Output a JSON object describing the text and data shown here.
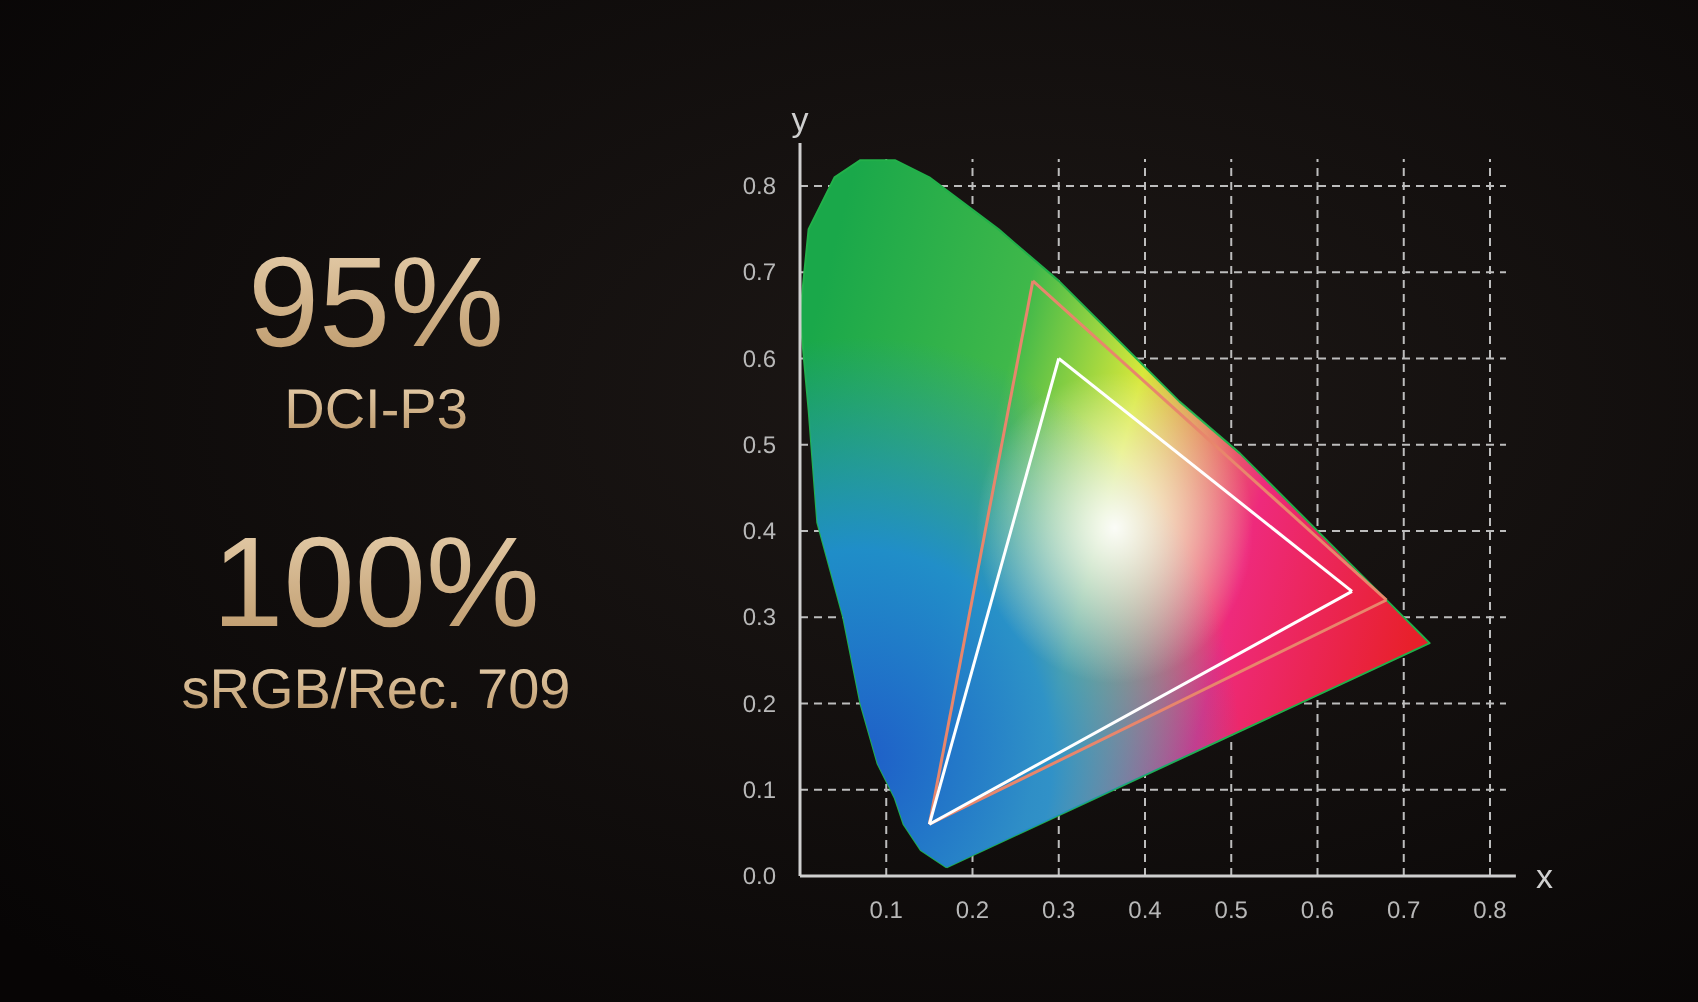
{
  "chart_data": {
    "type": "line",
    "xlabel": "x",
    "ylabel": "y",
    "annotations": [
      "95%",
      "DCI-P3",
      "100%",
      "sRGB/Rec. 709"
    ],
    "xlim": [
      0,
      0.83
    ],
    "ylim": [
      0,
      0.85
    ],
    "xticks": [
      0.1,
      0.2,
      0.3,
      0.4,
      0.5,
      0.6,
      0.7,
      0.8
    ],
    "yticks": [
      {
        "value": 0,
        "label": "0.0"
      },
      0.1,
      0.2,
      0.3,
      0.4,
      0.5,
      0.6,
      0.7,
      0.8
    ],
    "grid": true,
    "series": [
      {
        "type": "area",
        "color": "#22b04a",
        "x": [
          0.17,
          0.14,
          0.12,
          0.11,
          0.09,
          0.07,
          0.05,
          0.02,
          0.01,
          0.0,
          0.01,
          0.04,
          0.07,
          0.11,
          0.15,
          0.23,
          0.3,
          0.37,
          0.44,
          0.51,
          0.58,
          0.63,
          0.69,
          0.72,
          0.73,
          0.17
        ],
        "values": [
          0.01,
          0.03,
          0.06,
          0.09,
          0.13,
          0.2,
          0.3,
          0.41,
          0.54,
          0.65,
          0.75,
          0.81,
          0.83,
          0.83,
          0.81,
          0.75,
          0.69,
          0.62,
          0.55,
          0.49,
          0.42,
          0.37,
          0.31,
          0.28,
          0.27,
          0.01
        ]
      },
      {
        "color": "#e8866c",
        "x": [
          0.15,
          0.27
        ],
        "values": [
          0.06,
          0.69
        ]
      },
      {
        "color": "#e8866c",
        "x": [
          0.27,
          0.68
        ],
        "values": [
          0.69,
          0.32
        ]
      },
      {
        "color": "#e8866c",
        "x": [
          0.15,
          0.68
        ],
        "values": [
          0.06,
          0.32
        ]
      },
      {
        "color": "#ffffff",
        "x": [
          0.15,
          0.3
        ],
        "values": [
          0.06,
          0.6
        ]
      },
      {
        "color": "#ffffff",
        "x": [
          0.3,
          0.64
        ],
        "values": [
          0.6,
          0.33
        ]
      },
      {
        "color": "#ffffff",
        "x": [
          0.15,
          0.64
        ],
        "values": [
          0.06,
          0.33
        ]
      }
    ]
  }
}
